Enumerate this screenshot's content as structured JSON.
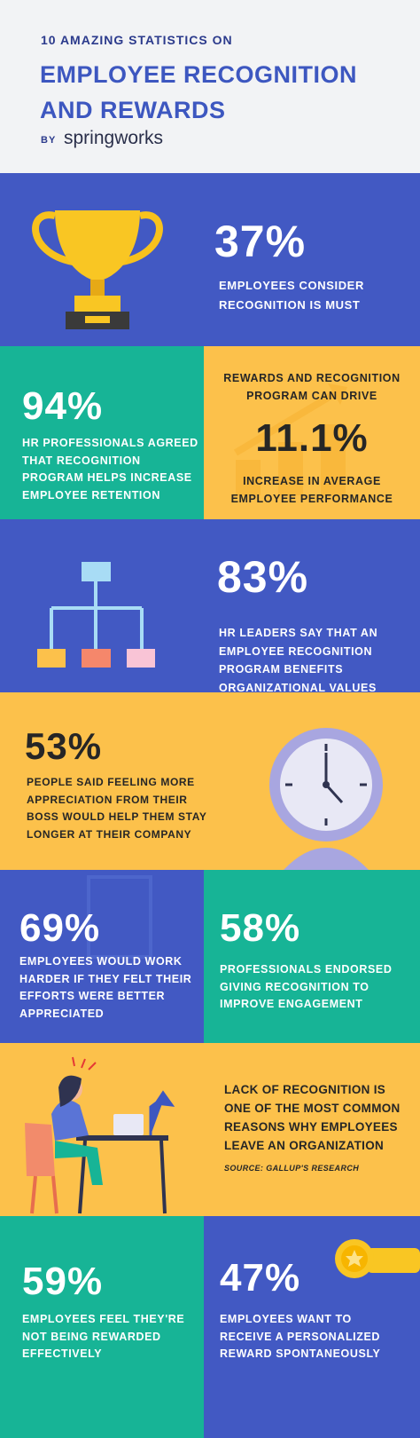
{
  "header": {
    "kicker": "10 AMAZING STATISTICS ON",
    "title_lines": [
      "EMPLOYEE RECOGNITION",
      "AND REWARDS"
    ],
    "by": "BY",
    "brand": "springworks"
  },
  "stats": [
    {
      "value": "37%",
      "lines": [
        "EMPLOYEES CONSIDER",
        "RECOGNITION IS MUST"
      ]
    },
    {
      "value": "94%",
      "lines": [
        "HR PROFESSIONALS AGREED",
        "THAT RECOGNITION",
        "PROGRAM HELPS INCREASE",
        "EMPLOYEE RETENTION"
      ]
    },
    {
      "lead_lines": [
        "REWARDS AND RECOGNITION",
        "PROGRAM CAN DRIVE"
      ],
      "value": "11.1%",
      "lines": [
        "INCREASE IN AVERAGE",
        "EMPLOYEE PERFORMANCE"
      ]
    },
    {
      "value": "83%",
      "lines": [
        "HR LEADERS SAY THAT AN",
        "EMPLOYEE RECOGNITION",
        "PROGRAM BENEFITS",
        "ORGANIZATIONAL VALUES"
      ]
    },
    {
      "value": "53%",
      "lines": [
        "PEOPLE SAID FEELING MORE",
        "APPRECIATION FROM THEIR",
        "BOSS WOULD HELP THEM STAY",
        "LONGER AT THEIR COMPANY"
      ]
    },
    {
      "value": "69%",
      "lines": [
        "EMPLOYEES WOULD WORK",
        "HARDER IF THEY FELT THEIR",
        "EFFORTS WERE BETTER",
        "APPRECIATED"
      ]
    },
    {
      "value": "58%",
      "lines": [
        "PROFESSIONALS ENDORSED",
        "GIVING RECOGNITION TO",
        "IMPROVE ENGAGEMENT"
      ]
    },
    {
      "lines": [
        "LACK OF RECOGNITION IS",
        "ONE OF THE MOST COMMON",
        "REASONS WHY EMPLOYEES",
        "LEAVE AN ORGANIZATION"
      ],
      "source": "SOURCE: GALLUP'S RESEARCH"
    },
    {
      "value": "59%",
      "lines": [
        "EMPLOYEES FEEL THEY'RE",
        "NOT BEING REWARDED",
        "EFFECTIVELY"
      ]
    },
    {
      "value": "47%",
      "lines": [
        "EMPLOYEES WANT TO",
        "RECEIVE A PERSONALIZED",
        "REWARD SPONTANEOUSLY"
      ]
    }
  ]
}
